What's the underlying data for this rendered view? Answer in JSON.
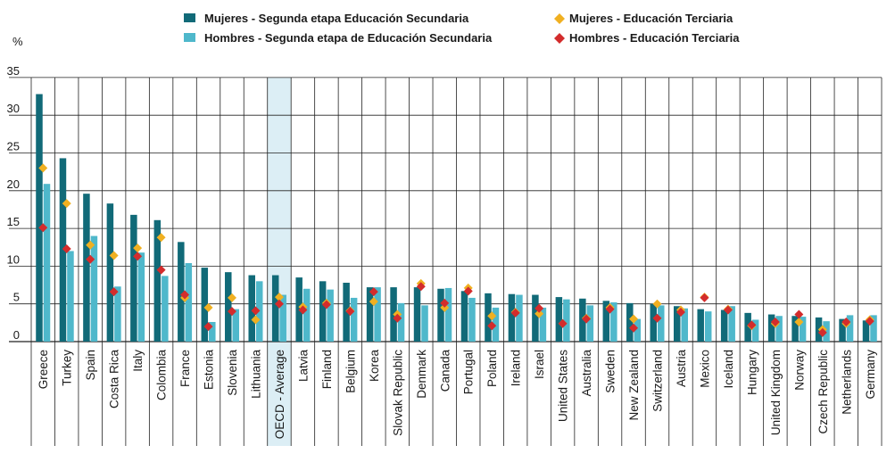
{
  "chart_data": {
    "type": "bar",
    "title": "",
    "xlabel": "",
    "ylabel": "%",
    "ylim": [
      0,
      35
    ],
    "yticks": [
      0,
      5,
      10,
      15,
      20,
      25,
      30,
      35
    ],
    "grid": "horizontal",
    "legend_position": "top",
    "highlight_category": "OECD - Average",
    "categories": [
      "Greece",
      "Turkey",
      "Spain",
      "Costa Rica",
      "Italy",
      "Colombia",
      "France",
      "Estonia",
      "Slovenia",
      "Lithuania",
      "OECD - Average",
      "Latvia",
      "Finland",
      "Belgium",
      "Korea",
      "Slovak Republic",
      "Denmark",
      "Canada",
      "Portugal",
      "Poland",
      "Ireland",
      "Israel",
      "United States",
      "Australia",
      "Sweden",
      "New Zealand",
      "Switzerland",
      "Austria",
      "Mexico",
      "Iceland",
      "Hungary",
      "United Kingdom",
      "Norway",
      "Czech Republic",
      "Netherlands",
      "Germany"
    ],
    "series": [
      {
        "name": "Mujeres - Segunda etapa Educación Secundaria",
        "kind": "bar",
        "color": "#116a78",
        "values": [
          32.8,
          24.3,
          19.6,
          18.3,
          16.8,
          16.1,
          13.2,
          9.8,
          9.2,
          8.8,
          8.8,
          8.5,
          8.0,
          7.8,
          7.2,
          7.2,
          7.2,
          7.0,
          6.7,
          6.4,
          6.3,
          6.2,
          5.9,
          5.7,
          5.4,
          5.1,
          5.0,
          4.7,
          4.3,
          4.2,
          3.8,
          3.6,
          3.4,
          3.2,
          3.0,
          2.8
        ]
      },
      {
        "name": "Hombres - Segunda etapa de Educación Secundaria",
        "kind": "bar",
        "color": "#4fb8cb",
        "values": [
          20.9,
          12.0,
          14.0,
          7.3,
          11.8,
          8.7,
          10.4,
          2.6,
          4.3,
          8.0,
          6.2,
          7.0,
          6.9,
          5.8,
          7.2,
          5.1,
          4.8,
          7.1,
          5.8,
          4.5,
          6.2,
          4.5,
          5.6,
          4.8,
          5.2,
          3.0,
          4.8,
          4.4,
          4.0,
          4.7,
          2.9,
          3.4,
          3.3,
          2.7,
          3.5,
          3.5
        ]
      },
      {
        "name": "Mujeres - Educación Terciaria",
        "kind": "marker",
        "color": "#f0b021",
        "values": [
          23.0,
          18.3,
          12.8,
          11.4,
          12.4,
          13.8,
          5.8,
          4.5,
          5.8,
          2.9,
          5.9,
          4.6,
          5.1,
          4.1,
          5.3,
          3.6,
          7.7,
          4.5,
          7.1,
          3.4,
          3.9,
          3.7,
          2.4,
          3.1,
          4.5,
          3.0,
          5.0,
          4.2,
          5.9,
          4.3,
          2.1,
          2.4,
          2.6,
          1.6,
          2.4,
          2.9
        ]
      },
      {
        "name": "Hombres - Educación Terciaria",
        "kind": "marker",
        "color": "#d32c2c",
        "values": [
          15.1,
          12.3,
          10.9,
          6.6,
          11.3,
          9.5,
          6.2,
          2.0,
          4.0,
          4.1,
          5.0,
          4.2,
          4.9,
          4.0,
          6.6,
          3.1,
          7.3,
          5.1,
          6.7,
          2.1,
          3.8,
          4.4,
          2.4,
          3.0,
          4.3,
          1.8,
          3.1,
          3.9,
          5.8,
          4.2,
          2.2,
          2.6,
          3.6,
          1.2,
          2.6,
          2.7
        ]
      }
    ]
  },
  "legend": {
    "items": [
      "Mujeres - Segunda etapa Educación Secundaria",
      "Hombres - Segunda etapa de Educación Secundaria",
      "Mujeres - Educación Terciaria",
      "Hombres - Educación Terciaria"
    ]
  }
}
